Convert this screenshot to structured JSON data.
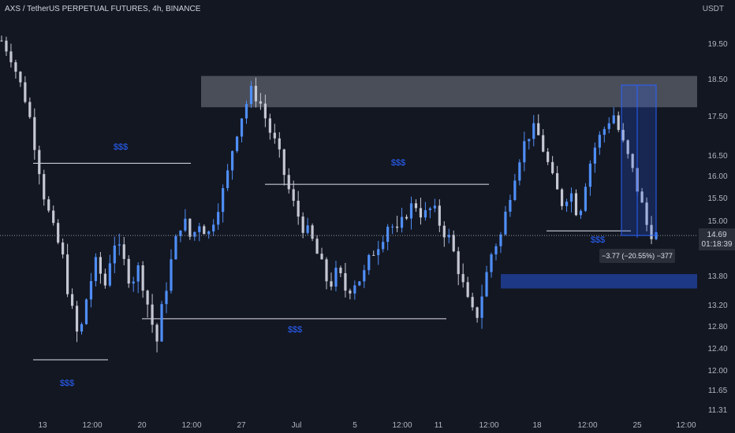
{
  "title": "AXS / TetherUS PERPETUAL FUTURES, 4h, BINANCE",
  "unit": "USDT",
  "chart_data": {
    "type": "candlestick",
    "y_ticks": [
      "19.50",
      "18.50",
      "17.50",
      "16.50",
      "16.00",
      "15.50",
      "15.00",
      "13.80",
      "13.20",
      "12.80",
      "12.40",
      "12.00",
      "11.65",
      "11.31"
    ],
    "x_ticks": [
      "13",
      "12:00",
      "20",
      "12:00",
      "27",
      "Jul",
      "5",
      "12:00",
      "11",
      "12:00",
      "18",
      "12:00",
      "25",
      "12:00"
    ],
    "last_price": "14.69",
    "countdown": "01:18:39",
    "measure_label": "−3.77 (−20.55%) −377",
    "annotations": [
      "$$$",
      "$$$",
      "$$$",
      "$$$",
      "$$$"
    ],
    "zones": [
      {
        "name": "supply-zone",
        "from": 17.75,
        "to": 18.6,
        "color": "#787b86"
      },
      {
        "name": "demand-zone",
        "from": 13.55,
        "to": 13.85,
        "color": "#1e3a8a"
      }
    ],
    "close_path": [
      19.6,
      19.2,
      18.5,
      17.8,
      16.6,
      15.5,
      14.8,
      14.3,
      13.2,
      12.5,
      13.5,
      14.1,
      13.6,
      14.6,
      14.2,
      13.7,
      14.0,
      13.2,
      12.5,
      13.5,
      14.4,
      15.1,
      14.6,
      15.0,
      14.7,
      15.3,
      15.8,
      16.9,
      17.6,
      18.2,
      17.9,
      17.2,
      16.7,
      15.9,
      15.3,
      14.9,
      14.6,
      14.1,
      13.6,
      13.9,
      13.5,
      13.7,
      13.8,
      14.3,
      14.6,
      15.0,
      14.7,
      15.2,
      15.4,
      15.1,
      15.3,
      14.9,
      14.6,
      14.0,
      13.3,
      12.9,
      13.6,
      14.4,
      14.7,
      15.6,
      16.4,
      17.0,
      17.2,
      16.6,
      15.9,
      15.4,
      15.7,
      15.1,
      16.1,
      16.8,
      17.2,
      17.6,
      16.9,
      16.3,
      15.6,
      14.85,
      14.69
    ],
    "candle_count": 140,
    "colors": {
      "up": "#4f8ef7",
      "down": "#c5c8d3",
      "zone1": "#787b86",
      "zone2": "#1e3a8a",
      "text_blue": "#2962ff"
    }
  }
}
